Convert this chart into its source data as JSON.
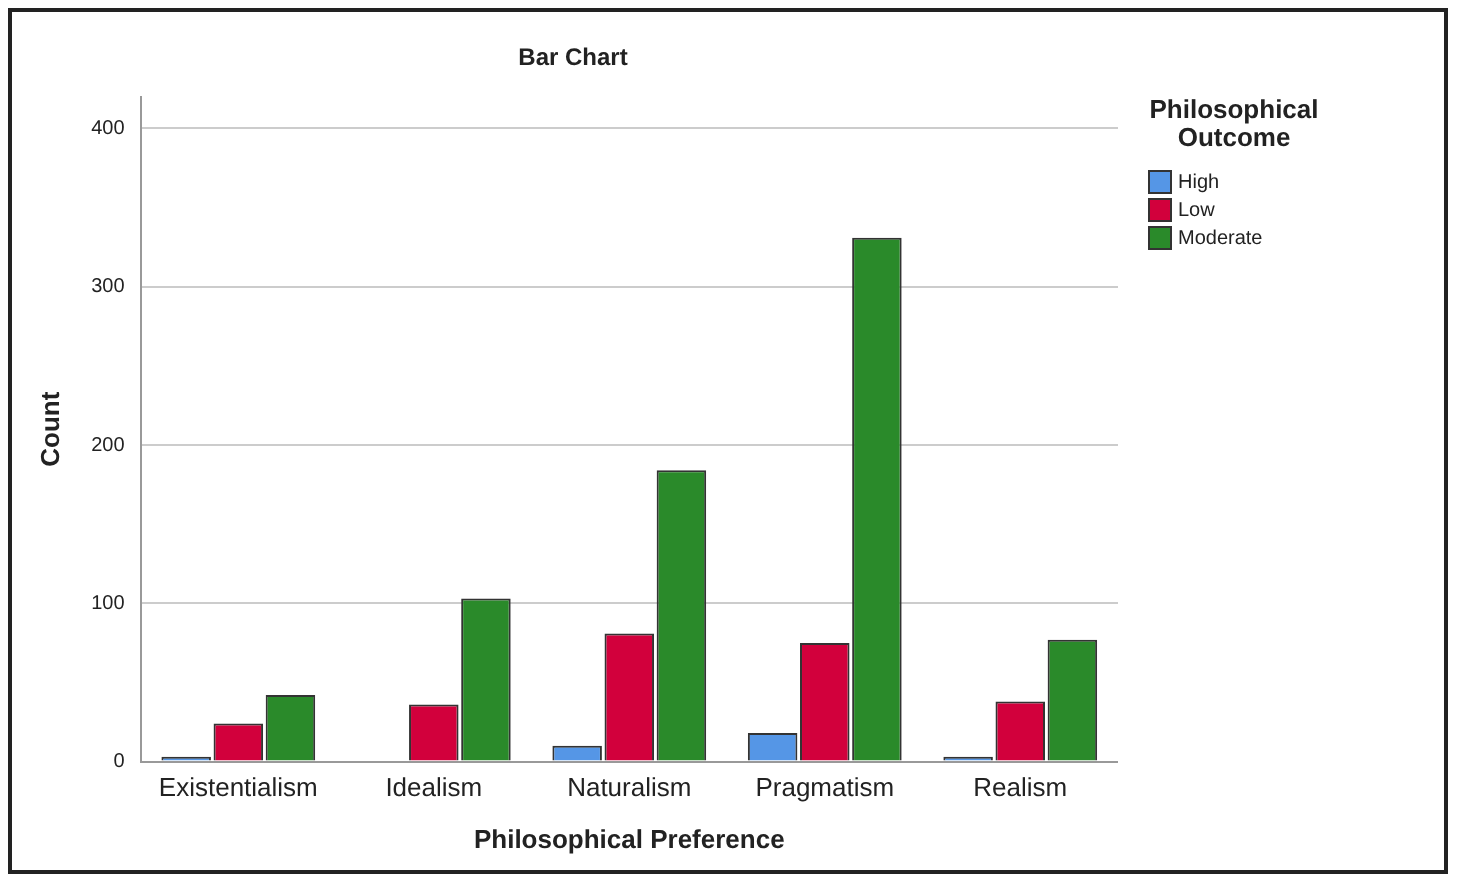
{
  "chart_data": {
    "type": "bar",
    "title": "Bar Chart",
    "xlabel": "Philosophical Preference",
    "ylabel": "Count",
    "legend_title": "Philosophical Outcome",
    "categories": [
      "Existentialism",
      "Idealism",
      "Naturalism",
      "Pragmatism",
      "Realism"
    ],
    "series": [
      {
        "name": "High",
        "color": "#5596e6",
        "values": [
          3,
          0,
          10,
          18,
          3
        ]
      },
      {
        "name": "Low",
        "color": "#d2003c",
        "values": [
          24,
          36,
          81,
          75,
          38
        ]
      },
      {
        "name": "Moderate",
        "color": "#2a8a2a",
        "values": [
          42,
          103,
          184,
          331,
          77
        ]
      }
    ],
    "ylim": [
      0,
      420
    ],
    "yticks": [
      0,
      100,
      200,
      300,
      400
    ],
    "grid": "y",
    "legend": "top right"
  }
}
